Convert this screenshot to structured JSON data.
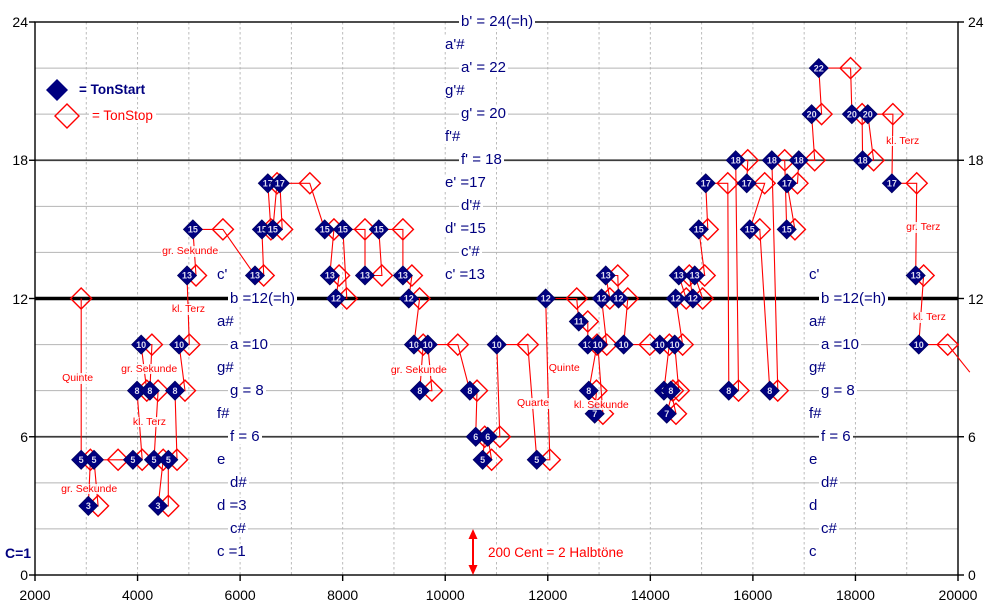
{
  "legend": {
    "start_label": "= TonStart",
    "stop_label": "= TonStop"
  },
  "annotations": {
    "cent_label": "200 Cent = 2 Halbtöne",
    "c1_label": "C=1"
  },
  "colors": {
    "start_fill": "#000080",
    "stop_stroke": "#ff0000",
    "melody_line": "#ff0000",
    "grid_light": "#b4b4b4",
    "grid_dark": "#3c3c3c",
    "grid_main": "#000000",
    "vgrid": "#bbbbbb",
    "number_text": "#dcdcf0"
  },
  "axes": {
    "x_ticks": [
      2000,
      4000,
      6000,
      8000,
      10000,
      12000,
      14000,
      16000,
      18000,
      20000
    ],
    "y_ticks": [
      24,
      18,
      12,
      6,
      0
    ],
    "x_range": [
      2000,
      20000
    ],
    "y_range": [
      0,
      24
    ]
  },
  "pitch_columns": {
    "center": [
      {
        "label": "b' = 24(=h)",
        "value": 24,
        "indent": 1
      },
      {
        "label": "a'#",
        "value": 23,
        "indent": 0
      },
      {
        "label": "a' = 22",
        "value": 22,
        "indent": 1
      },
      {
        "label": "g'#",
        "value": 21,
        "indent": 0
      },
      {
        "label": "g' = 20",
        "value": 20,
        "indent": 1
      },
      {
        "label": "f'#",
        "value": 19,
        "indent": 0
      },
      {
        "label": "f' = 18",
        "value": 18,
        "indent": 1
      },
      {
        "label": "e' =17",
        "value": 17,
        "indent": 0
      },
      {
        "label": "d'#",
        "value": 16,
        "indent": 1
      },
      {
        "label": "d' =15",
        "value": 15,
        "indent": 0
      },
      {
        "label": "c'#",
        "value": 14,
        "indent": 1
      },
      {
        "label": "c' =13",
        "value": 13,
        "indent": 0
      }
    ],
    "left": [
      {
        "label": "c'",
        "value": 13,
        "indent": 0
      },
      {
        "label": "b =12(=h)",
        "value": 12,
        "indent": 1
      },
      {
        "label": "a#",
        "value": 11,
        "indent": 0
      },
      {
        "label": "a =10",
        "value": 10,
        "indent": 1
      },
      {
        "label": "g#",
        "value": 9,
        "indent": 0
      },
      {
        "label": "g = 8",
        "value": 8,
        "indent": 1
      },
      {
        "label": "f#",
        "value": 7,
        "indent": 0
      },
      {
        "label": "f = 6",
        "value": 6,
        "indent": 1
      },
      {
        "label": "e",
        "value": 5,
        "indent": 0
      },
      {
        "label": "d#",
        "value": 4,
        "indent": 1
      },
      {
        "label": "d =3",
        "value": 3,
        "indent": 0
      },
      {
        "label": "c#",
        "value": 2,
        "indent": 1
      },
      {
        "label": "c =1",
        "value": 1,
        "indent": 0
      }
    ],
    "right": [
      {
        "label": "c'",
        "value": 13,
        "indent": 0
      },
      {
        "label": "b =12(=h)",
        "value": 12,
        "indent": 1
      },
      {
        "label": "a#",
        "value": 11,
        "indent": 0
      },
      {
        "label": "a =10",
        "value": 10,
        "indent": 1
      },
      {
        "label": "g#",
        "value": 9,
        "indent": 0
      },
      {
        "label": "g = 8",
        "value": 8,
        "indent": 1
      },
      {
        "label": "f#",
        "value": 7,
        "indent": 0
      },
      {
        "label": "f = 6",
        "value": 6,
        "indent": 1
      },
      {
        "label": "e",
        "value": 5,
        "indent": 0
      },
      {
        "label": "d#",
        "value": 4,
        "indent": 1
      },
      {
        "label": "d",
        "value": 3,
        "indent": 0
      },
      {
        "label": "c#",
        "value": 2,
        "indent": 1
      },
      {
        "label": "c",
        "value": 1,
        "indent": 0
      }
    ]
  },
  "intervals": [
    {
      "text": "gr. Sekunde",
      "t": 2490,
      "pitch": 3.7
    },
    {
      "text": "Quinte",
      "t": 2510,
      "pitch": 8.5
    },
    {
      "text": "gr. Sekunde",
      "t": 3660,
      "pitch": 8.9
    },
    {
      "text": "kl. Terz",
      "t": 3890,
      "pitch": 6.6
    },
    {
      "text": "gr. Sekunde",
      "t": 4460,
      "pitch": 14.0
    },
    {
      "text": "kl. Terz",
      "t": 4650,
      "pitch": 11.5
    },
    {
      "text": "gr. Sekunde",
      "t": 8920,
      "pitch": 8.85
    },
    {
      "text": "Quarte",
      "t": 11380,
      "pitch": 7.4
    },
    {
      "text": "Quinte",
      "t": 12000,
      "pitch": 8.95
    },
    {
      "text": "kl. Sekunde",
      "t": 12490,
      "pitch": 7.35
    },
    {
      "text": "kl. Terz",
      "t": 18580,
      "pitch": 18.8
    },
    {
      "text": "gr. Terz",
      "t": 18970,
      "pitch": 15.05
    },
    {
      "text": "kl. Terz",
      "t": 19100,
      "pitch": 11.15
    }
  ],
  "chart_data": {
    "type": "scatter",
    "title": "",
    "xlabel": "",
    "ylabel": "",
    "x_range": [
      2000,
      20000
    ],
    "y_range": [
      0,
      24
    ],
    "grid": "horizontal every 2 semitones, vertical dashed every 1000 ms",
    "note_format": [
      "pitch",
      "start_ms",
      "stop_ms"
    ],
    "leading_stop": {
      "pitch": 12,
      "t": 2900
    },
    "trailing_line_to": {
      "pitch": 8.8,
      "t": 20230
    },
    "notes": [
      [
        5,
        2900,
        3080
      ],
      [
        3,
        3040,
        3230
      ],
      [
        5,
        3150,
        3620
      ],
      [
        5,
        3910,
        4090
      ],
      [
        8,
        3990,
        4180
      ],
      [
        10,
        4070,
        4280
      ],
      [
        8,
        4240,
        4400
      ],
      [
        5,
        4320,
        4500
      ],
      [
        3,
        4400,
        4600
      ],
      [
        5,
        4600,
        4770
      ],
      [
        8,
        4730,
        4925
      ],
      [
        10,
        4810,
        5010
      ],
      [
        13,
        4965,
        5140
      ],
      [
        15,
        5080,
        5665
      ],
      [
        13,
        6290,
        6460
      ],
      [
        15,
        6425,
        6600
      ],
      [
        17,
        6540,
        6720
      ],
      [
        15,
        6640,
        6820
      ],
      [
        17,
        6775,
        7360
      ],
      [
        15,
        7650,
        7830
      ],
      [
        13,
        7750,
        7930
      ],
      [
        12,
        7870,
        8080
      ],
      [
        15,
        8005,
        8435
      ],
      [
        13,
        8435,
        8765
      ],
      [
        15,
        8705,
        9175
      ],
      [
        13,
        9175,
        9350
      ],
      [
        12,
        9290,
        9500
      ],
      [
        10,
        9390,
        9570
      ],
      [
        8,
        9505,
        9740
      ],
      [
        10,
        9660,
        10245
      ],
      [
        8,
        10480,
        10620
      ],
      [
        6,
        10595,
        10770
      ],
      [
        5,
        10730,
        10905
      ],
      [
        6,
        10830,
        11065
      ],
      [
        10,
        11005,
        11610
      ],
      [
        5,
        11785,
        12040
      ],
      [
        12,
        11960,
        12565
      ],
      [
        11,
        12605,
        12780
      ],
      [
        10,
        12780,
        12960
      ],
      [
        8,
        12800,
        12950
      ],
      [
        7,
        12915,
        13075
      ],
      [
        10,
        12975,
        13150
      ],
      [
        12,
        13050,
        13210
      ],
      [
        13,
        13130,
        13365
      ],
      [
        12,
        13380,
        13560
      ],
      [
        10,
        13480,
        13990
      ],
      [
        10,
        14185,
        14370
      ],
      [
        8,
        14265,
        14440
      ],
      [
        7,
        14320,
        14500
      ],
      [
        8,
        14400,
        14555
      ],
      [
        10,
        14475,
        14630
      ],
      [
        12,
        14495,
        14700
      ],
      [
        13,
        14555,
        14760
      ],
      [
        12,
        14830,
        15020
      ],
      [
        13,
        14865,
        15060
      ],
      [
        15,
        14945,
        15120
      ],
      [
        17,
        15080,
        15510
      ],
      [
        8,
        15530,
        15720
      ],
      [
        18,
        15665,
        15900
      ],
      [
        17,
        15880,
        16230
      ],
      [
        15,
        15940,
        16135
      ],
      [
        8,
        16330,
        16485
      ],
      [
        18,
        16370,
        16620
      ],
      [
        15,
        16660,
        16820
      ],
      [
        17,
        16665,
        16870
      ],
      [
        18,
        16895,
        17205
      ],
      [
        20,
        17145,
        17340
      ],
      [
        22,
        17285,
        17905
      ],
      [
        20,
        17930,
        18130
      ],
      [
        18,
        18140,
        18355
      ],
      [
        20,
        18240,
        18730
      ],
      [
        17,
        18710,
        19195
      ],
      [
        13,
        19175,
        19330
      ],
      [
        10,
        19235,
        19800
      ]
    ]
  }
}
